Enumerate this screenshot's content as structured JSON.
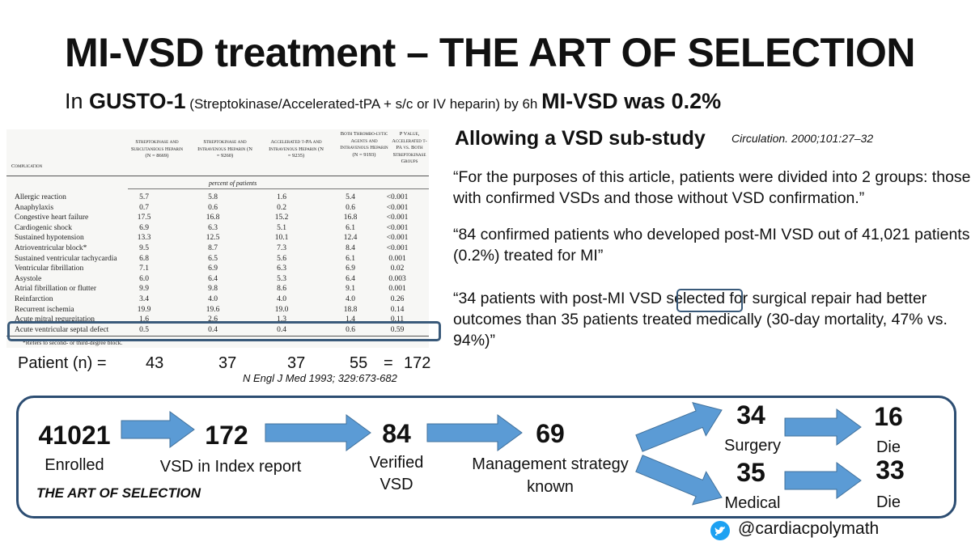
{
  "title": "MI-VSD treatment – THE ART OF SELECTION",
  "subtitle": {
    "prefix": "In ",
    "trial": "GUSTO-1",
    "detail": " (Streptokinase/Accelerated-tPA + s/c or IV heparin) by 6h ",
    "result": "MI-VSD was 0.2%"
  },
  "table": {
    "headers": {
      "complication": "Complication",
      "col1": "Streptokinase and Subcutaneous Heparin (N = 8669)",
      "col2": "Streptokinase and Intravenous Heparin (N = 9260)",
      "col3": "Accelerated t-PA and Intravenous Heparin (N = 9235)",
      "col4": "Both Thrombo-lytic Agents and Intravenous Heparin (N = 9193)",
      "col5": "P Value, Accelerated t-PA vs. Both Streptokinase Groups"
    },
    "unit_label": "percent of patients",
    "rows": [
      {
        "name": "Allergic reaction",
        "v1": "5.7",
        "v2": "5.8",
        "v3": "1.6",
        "v4": "5.4",
        "p": "<0.001"
      },
      {
        "name": "Anaphylaxis",
        "v1": "0.7",
        "v2": "0.6",
        "v3": "0.2",
        "v4": "0.6",
        "p": "<0.001"
      },
      {
        "name": "Congestive heart failure",
        "v1": "17.5",
        "v2": "16.8",
        "v3": "15.2",
        "v4": "16.8",
        "p": "<0.001"
      },
      {
        "name": "Cardiogenic shock",
        "v1": "6.9",
        "v2": "6.3",
        "v3": "5.1",
        "v4": "6.1",
        "p": "<0.001"
      },
      {
        "name": "Sustained hypotension",
        "v1": "13.3",
        "v2": "12.5",
        "v3": "10.1",
        "v4": "12.4",
        "p": "<0.001"
      },
      {
        "name": "Atrioventricular block*",
        "v1": "9.5",
        "v2": "8.7",
        "v3": "7.3",
        "v4": "8.4",
        "p": "<0.001"
      },
      {
        "name": "Sustained ventricular tachycardia",
        "v1": "6.8",
        "v2": "6.5",
        "v3": "5.6",
        "v4": "6.1",
        "p": "0.001"
      },
      {
        "name": "Ventricular fibrillation",
        "v1": "7.1",
        "v2": "6.9",
        "v3": "6.3",
        "v4": "6.9",
        "p": "0.02"
      },
      {
        "name": "Asystole",
        "v1": "6.0",
        "v2": "6.4",
        "v3": "5.3",
        "v4": "6.4",
        "p": "0.003"
      },
      {
        "name": "Atrial fibrillation or flutter",
        "v1": "9.9",
        "v2": "9.8",
        "v3": "8.6",
        "v4": "9.1",
        "p": "0.001"
      },
      {
        "name": "Reinfarction",
        "v1": "3.4",
        "v2": "4.0",
        "v3": "4.0",
        "v4": "4.0",
        "p": "0.26"
      },
      {
        "name": "Recurrent ischemia",
        "v1": "19.9",
        "v2": "19.6",
        "v3": "19.0",
        "v4": "18.8",
        "p": "0.14"
      },
      {
        "name": "Acute mitral regurgitation",
        "v1": "1.6",
        "v2": "2.6",
        "v3": "1.3",
        "v4": "1.4",
        "p": "0.11"
      },
      {
        "name": "Acute ventricular septal defect",
        "v1": "0.5",
        "v2": "0.4",
        "v3": "0.4",
        "v4": "0.6",
        "p": "0.59"
      }
    ],
    "footnote": "*Refers to second- or third-degree block."
  },
  "patient_row": {
    "label": "Patient (n) =",
    "n1": "43",
    "n2": "37",
    "n3": "37",
    "n4": "55",
    "eq": "=",
    "total": "172"
  },
  "nejm_ref": "N Engl J Med 1993; 329:673-682",
  "substudy": {
    "heading": "Allowing a VSD sub-study",
    "reference": "Circulation. 2000;101:27–32",
    "quote1": "“For the purposes of this article, patients were divided into 2 groups: those with confirmed VSDs and those without VSD confirmation.”",
    "quote2": "“84 confirmed patients who developed post-MI VSD out of 41,021 patients (0.2%) treated for MI”",
    "quote3_pre": "“34 patients with post-MI VSD ",
    "quote3_sel": "selected",
    "quote3_post": " for surgical repair had better outcomes than 35 patients treated medically (30-day mortality, 47% vs. 94%)”"
  },
  "flow": {
    "enrolled": {
      "value": "41021",
      "label": "Enrolled"
    },
    "index": {
      "value": "172",
      "label": "VSD in Index report"
    },
    "verified": {
      "value": "84",
      "label1": "Verified",
      "label2": "VSD"
    },
    "known": {
      "value": "69",
      "label1": "Management strategy",
      "label2": "known"
    },
    "surgery": {
      "value": "34",
      "label": "Surgery"
    },
    "medical": {
      "value": "35",
      "label": "Medical"
    },
    "surgery_die": {
      "value": "16",
      "label": "Die"
    },
    "medical_die": {
      "value": "33",
      "label": "Die"
    },
    "tagline": "THE ART OF SELECTION",
    "arrow_color": "#5b9bd5"
  },
  "footer": {
    "handle": "@cardiacpolymath"
  }
}
